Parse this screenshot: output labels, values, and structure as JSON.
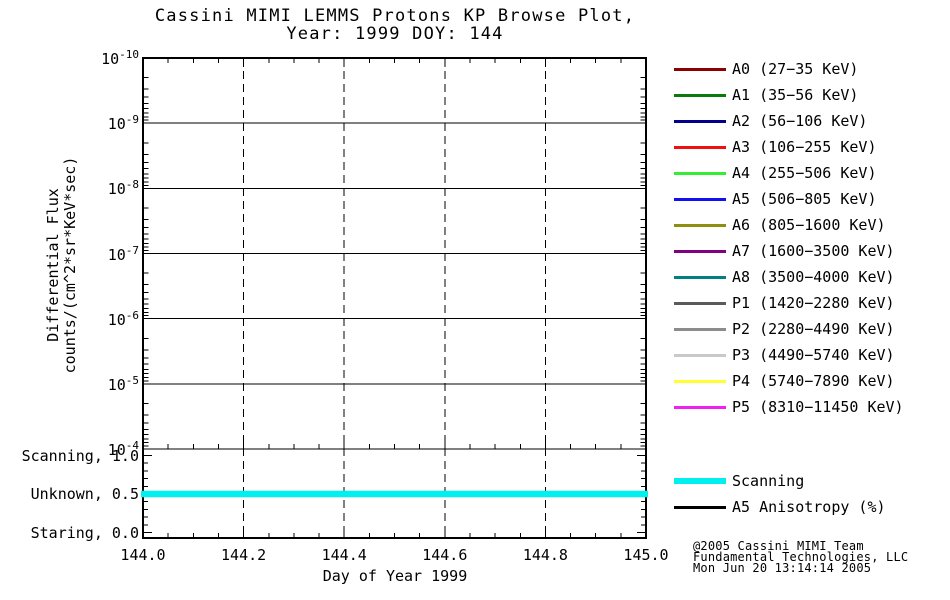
{
  "title": {
    "line1": "Cassini MIMI LEMMS Protons KP Browse Plot,",
    "line2": "Year: 1999 DOY: 144"
  },
  "axes": {
    "y_title_line1": "Differential Flux",
    "y_title_line2": "counts/(cm^2*sr*KeV*sec)",
    "x_title": "Day of Year 1999",
    "y_tick_exponents": [
      -10,
      -9,
      -8,
      -7,
      -6,
      -5,
      -4
    ],
    "x_tick_labels": [
      "144.0",
      "144.2",
      "144.4",
      "144.6",
      "144.8",
      "145.0"
    ],
    "x_tick_values": [
      144.0,
      144.2,
      144.4,
      144.6,
      144.8,
      145.0
    ],
    "mode_tick_labels": [
      {
        "label": "Scanning, 1.0",
        "value": 1.0
      },
      {
        "label": "Unknown, 0.5",
        "value": 0.5
      },
      {
        "label": "Staring, 0.0",
        "value": 0.0
      }
    ]
  },
  "legend": {
    "channels": [
      {
        "name": "A0",
        "range": "(27−35 KeV)",
        "color": "#8B0000"
      },
      {
        "name": "A1",
        "range": "(35−56 KeV)",
        "color": "#0A7A0A"
      },
      {
        "name": "A2",
        "range": "(56−106 KeV)",
        "color": "#00008B"
      },
      {
        "name": "A3",
        "range": "(106−255 KeV)",
        "color": "#EE1111"
      },
      {
        "name": "A4",
        "range": "(255−506 KeV)",
        "color": "#33EE33"
      },
      {
        "name": "A5",
        "range": "(506−805 KeV)",
        "color": "#1111EE"
      },
      {
        "name": "A6",
        "range": "(805−1600 KeV)",
        "color": "#8E8E11"
      },
      {
        "name": "A7",
        "range": "(1600−3500 KeV)",
        "color": "#800080"
      },
      {
        "name": "A8",
        "range": "(3500−4000 KeV)",
        "color": "#008080"
      },
      {
        "name": "P1",
        "range": "(1420−2280 KeV)",
        "color": "#5A5A5A"
      },
      {
        "name": "P2",
        "range": "(2280−4490 KeV)",
        "color": "#8C8C8C"
      },
      {
        "name": "P3",
        "range": "(4490−5740 KeV)",
        "color": "#C9C9C9"
      },
      {
        "name": "P4",
        "range": "(5740−7890 KeV)",
        "color": "#FFFF33"
      },
      {
        "name": "P5",
        "range": "(8310−11450 KeV)",
        "color": "#EE22EE"
      }
    ],
    "extra": [
      {
        "label": "Scanning",
        "color": "#00EFEF",
        "thick": true
      },
      {
        "label": "A5 Anisotropy (%)",
        "color": "#000000",
        "thick": false
      }
    ]
  },
  "credit": {
    "line1": "@2005 Cassini MIMI Team",
    "line2": "Fundamental Technologies, LLC",
    "line3": "Mon Jun 20 13:14:14 2005"
  },
  "chart_data": {
    "type": "line",
    "title": "Cassini MIMI LEMMS Protons KP Browse Plot, Year: 1999 DOY: 144",
    "xlabel": "Day of Year 1999",
    "ylabel": "Differential Flux counts/(cm^2*sr*KeV*sec)",
    "x_range": [
      144.0,
      145.0
    ],
    "x_ticks": [
      144.0,
      144.2,
      144.4,
      144.6,
      144.8,
      145.0
    ],
    "x_minor_tick_step": 0.05,
    "flux_axis": {
      "scale": "log",
      "direction": "exponent increases downward",
      "tick_exponents": [
        -10,
        -9,
        -8,
        -7,
        -6,
        -5,
        -4
      ]
    },
    "mode_axis": {
      "range": [
        0.0,
        1.0
      ],
      "ticks": [
        {
          "value": 1.0,
          "label": "Scanning"
        },
        {
          "value": 0.5,
          "label": "Unknown"
        },
        {
          "value": 0.0,
          "label": "Staring"
        }
      ]
    },
    "grid": {
      "horizontal": "solid at each decade",
      "vertical": "dashed at each 0.2 day"
    },
    "legend_position": "right",
    "series": [
      {
        "name": "Scanning",
        "panel": "mode",
        "color": "#00EFEF",
        "x": [
          144.0,
          145.0
        ],
        "y": [
          0.5,
          0.5
        ]
      }
    ],
    "flux_series_plotted": []
  }
}
